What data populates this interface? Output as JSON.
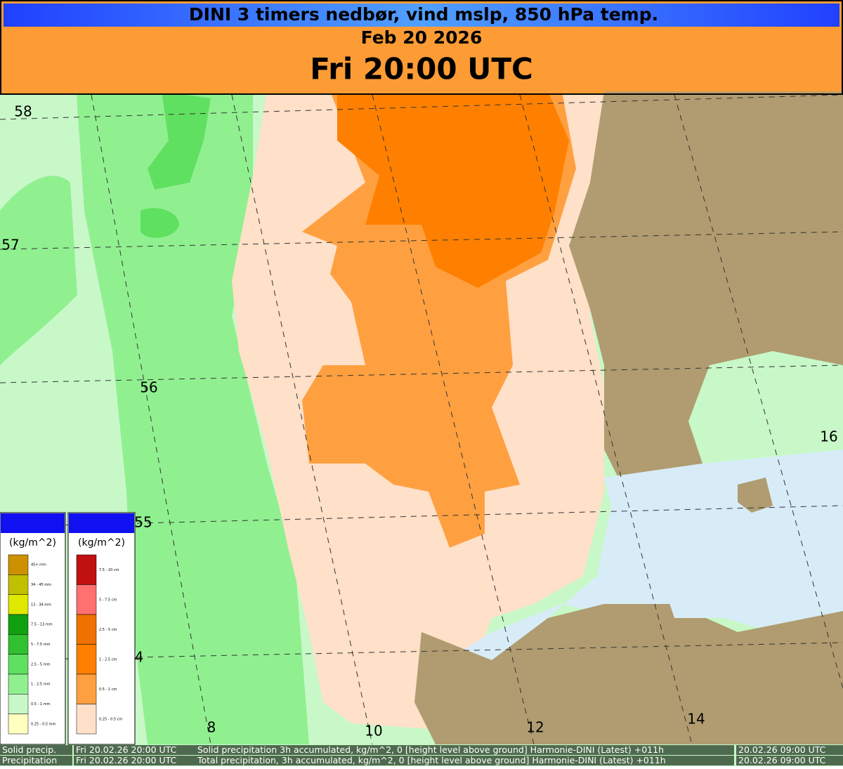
{
  "header": {
    "title": "DINI 3 timers nedbør, vind mslp, 850 hPa temp.",
    "date": "Feb 20 2026",
    "time": "Fri 20:00 UTC"
  },
  "map": {
    "lat_labels": [
      "58",
      "57",
      "56",
      "55",
      "4"
    ],
    "lon_labels": [
      "8",
      "10",
      "12",
      "14",
      "16"
    ]
  },
  "legends": [
    {
      "unit": "(kg/m^2)",
      "items": [
        "45+ mm",
        "34 - 45 mm",
        "13 - 34 mm",
        "7.5 - 13 mm",
        "5 - 7.5 mm",
        "2.5 - 5 mm",
        "1 - 2.5 mm",
        "0.5 - 1 mm",
        "0.25 - 0.5 mm"
      ]
    },
    {
      "unit": "(kg/m^2)",
      "items": [
        "7.5 - 20 cm",
        "5 - 7.5 cm",
        "2.5 - 5 cm",
        "1 - 2.5 cm",
        "0.5 - 1 cm",
        "0.25 - 0.5 cm"
      ]
    }
  ],
  "footer": {
    "rows": [
      [
        "Solid precip.",
        "Fri 20.02.26 20:00 UTC",
        "Solid precipitation 3h accumulated, kg/m^2, 0 [height level above ground] Harmonie-DINI (Latest) +011h",
        "20.02.26 09:00 UTC"
      ],
      [
        "Precipitation",
        "Fri 20.02.26 20:00 UTC",
        "Total precipitation, 3h accumulated, kg/m^2, 0 [height level above ground] Harmonie-DINI (Latest) +011h",
        "20.02.26 09:00 UTC"
      ]
    ]
  }
}
